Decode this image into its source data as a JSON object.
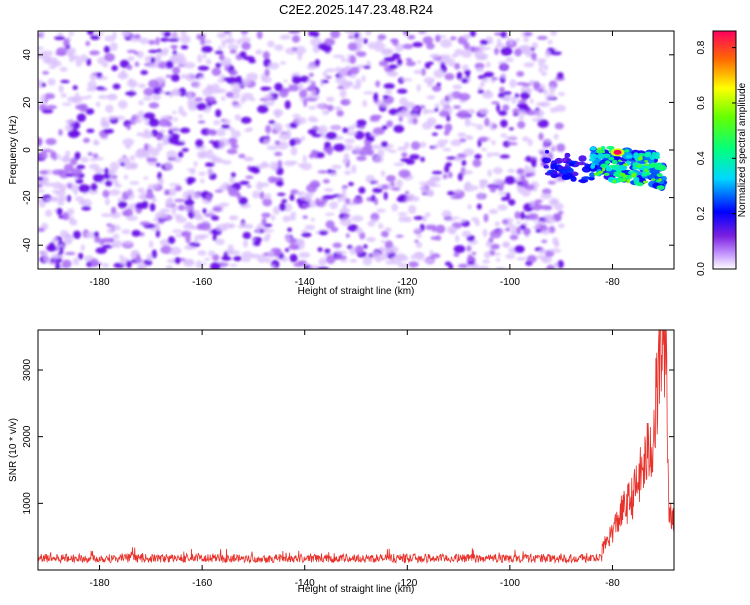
{
  "title": "C2E2.2025.147.23.48.R24",
  "colors": {
    "noise_purple": "#8a2be2",
    "line_red": "#e8312a",
    "axis": "#000000"
  },
  "colorbar": {
    "label": "Normalized spectral amplitude",
    "ticks": [
      "0.0",
      "0.2",
      "0.4",
      "0.6",
      "0.8"
    ],
    "range": [
      0.0,
      0.86
    ]
  },
  "chart_data": [
    {
      "type": "heatmap",
      "title": "",
      "xlabel": "Height of straight line (km)",
      "ylabel": "Frequency (Hz)",
      "xlim": [
        -192,
        -68
      ],
      "ylim": [
        -50,
        50
      ],
      "x_ticks": [
        "-180",
        "-160",
        "-140",
        "-120",
        "-100",
        "-80"
      ],
      "y_ticks": [
        "-40",
        "-20",
        "0",
        "20",
        "40"
      ],
      "color_scale": "normalized spectral amplitude 0.0-0.86 (rainbow)",
      "features": [
        {
          "x_range": [
            -192,
            -93
          ],
          "y_range": [
            -50,
            50
          ],
          "amplitude": 0.08
        },
        {
          "x_range": [
            -93,
            -84
          ],
          "y_range": [
            -10,
            0
          ],
          "amplitude": 0.15
        },
        {
          "x_range": [
            -84,
            -70
          ],
          "y_range": [
            -12,
            2
          ],
          "amplitude": 0.45
        },
        {
          "x": -79,
          "y": -1,
          "amplitude": 0.86
        }
      ]
    },
    {
      "type": "line",
      "title": "",
      "xlabel": "Height of straight line (km)",
      "ylabel": "SNR (10 * v/v)",
      "xlim": [
        -192,
        -68
      ],
      "ylim": [
        0,
        3600
      ],
      "x_ticks": [
        "-180",
        "-160",
        "-140",
        "-120",
        "-100",
        "-80"
      ],
      "y_ticks": [
        "1000",
        "2000",
        "3000"
      ],
      "series": [
        {
          "x": [
            -192,
            -180,
            -170,
            -160,
            -150,
            -140,
            -130,
            -120,
            -110,
            -100,
            -95,
            -90,
            -85,
            -82,
            -80,
            -78,
            -76,
            -74,
            -72,
            -71,
            -70,
            -69.5,
            -69
          ],
          "values": [
            180,
            190,
            175,
            185,
            180,
            178,
            182,
            185,
            190,
            200,
            230,
            220,
            240,
            300,
            550,
            850,
            1050,
            1450,
            1900,
            2800,
            3600,
            3200,
            800
          ]
        }
      ]
    }
  ]
}
